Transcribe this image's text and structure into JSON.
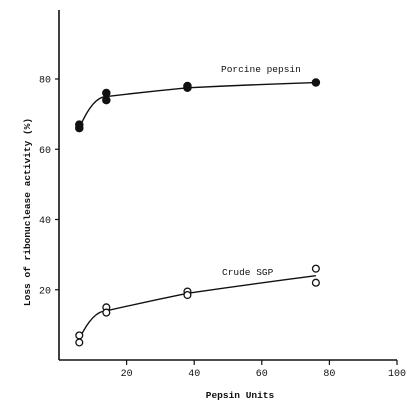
{
  "chart_data": {
    "type": "scatter",
    "xlabel": "Pepsin Units",
    "ylabel": "Loss of ribonuclease activity (%)",
    "xlim": [
      0,
      100
    ],
    "ylim": [
      0,
      95
    ],
    "xticks": [
      "20",
      "40",
      "60",
      "80",
      "100"
    ],
    "yticks": [
      "20",
      "40",
      "60",
      "80"
    ],
    "grid": false,
    "series": [
      {
        "name": "Porcine pepsin",
        "marker": "filled-circle",
        "points": [
          [
            6,
            67
          ],
          [
            6,
            66
          ],
          [
            14,
            76
          ],
          [
            14,
            74
          ],
          [
            38,
            78
          ],
          [
            38,
            77.5
          ],
          [
            76,
            79
          ]
        ],
        "curve": [
          [
            6,
            66
          ],
          [
            14,
            75
          ],
          [
            38,
            77.5
          ],
          [
            76,
            79
          ]
        ]
      },
      {
        "name": "Crude SGP",
        "marker": "open-circle",
        "points": [
          [
            6,
            7
          ],
          [
            6,
            5
          ],
          [
            14,
            15
          ],
          [
            14,
            13.5
          ],
          [
            38,
            19.5
          ],
          [
            38,
            18.5
          ],
          [
            76,
            26
          ],
          [
            76,
            22
          ]
        ],
        "curve": [
          [
            6,
            6
          ],
          [
            14,
            14
          ],
          [
            38,
            19
          ],
          [
            76,
            24
          ]
        ]
      }
    ],
    "colors": {
      "ink": "#111111",
      "background": "#ffffff"
    }
  }
}
